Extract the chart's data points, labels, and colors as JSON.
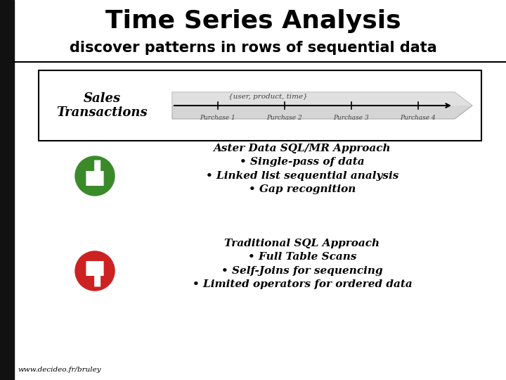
{
  "title": "Time Series Analysis",
  "subtitle": "discover patterns in rows of sequential data",
  "title_fontsize": 26,
  "subtitle_fontsize": 15,
  "bg_color": "#ffffff",
  "header_bar_color": "#111111",
  "left_bar_color": "#111111",
  "box_label": "Sales\nTransactions",
  "arrow_label_top": "{user, product, time}",
  "purchases": [
    "Purchase 1",
    "Purchase 2",
    "Purchase 3",
    "Purchase 4"
  ],
  "good_title": "Aster Data SQL/MR Approach",
  "good_bullets": [
    "• Single-pass of data",
    "• Linked list sequential analysis",
    "• Gap recognition"
  ],
  "bad_title": "Traditional SQL Approach",
  "bad_bullets": [
    "• Full Table Scans",
    "• Self-Joins for sequencing",
    "• Limited operators for ordered data"
  ],
  "footer": "www.decideo.fr/bruley",
  "thumb_up_color": "#3a8a2a",
  "thumb_down_color": "#cc2222",
  "arrow_fill_left": "#c8c8c8",
  "arrow_fill_right": "#e8e8e8",
  "arrow_edge_color": "#999999"
}
